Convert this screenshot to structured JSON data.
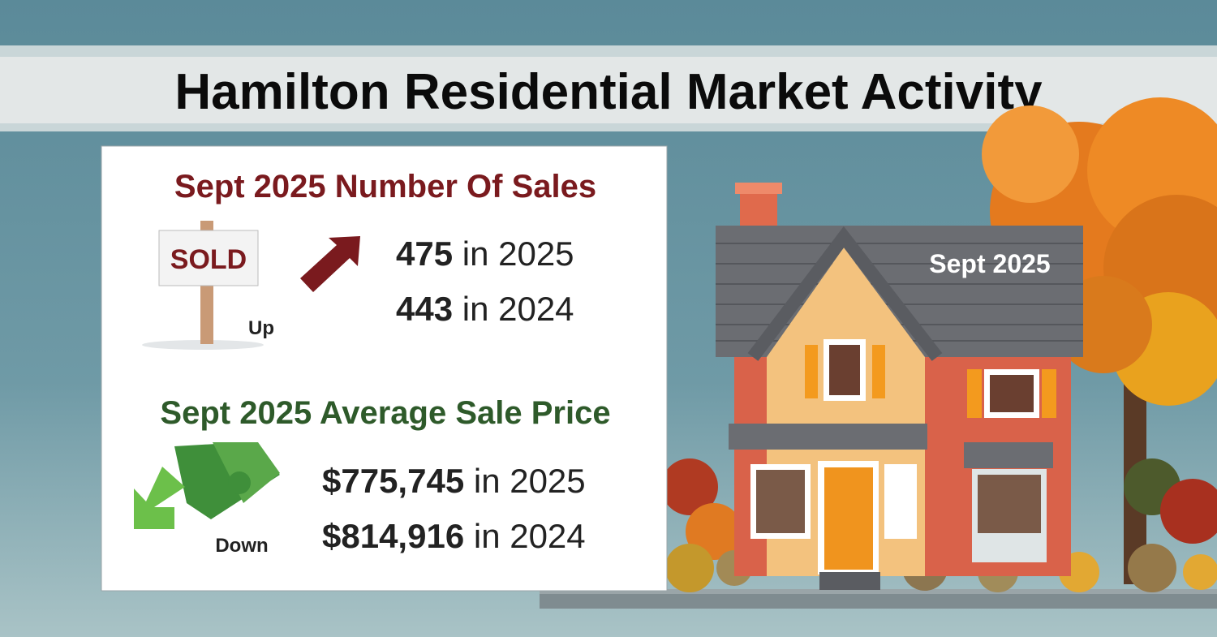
{
  "header": {
    "title": "Hamilton Residential Market Activity"
  },
  "sales": {
    "heading": "Sept 2025 Number Of Sales",
    "sign": "SOLD",
    "direction": "Up",
    "rows": [
      {
        "value": "475",
        "text": "in 2025"
      },
      {
        "value": "443",
        "text": "in 2024"
      }
    ]
  },
  "price": {
    "heading": "Sept 2025 Average Sale Price",
    "direction": "Down",
    "rows": [
      {
        "value": "$775,745",
        "text": "in 2025"
      },
      {
        "value": "$814,916",
        "text": "in 2024"
      }
    ]
  },
  "house": {
    "label": "Sept 2025"
  }
}
